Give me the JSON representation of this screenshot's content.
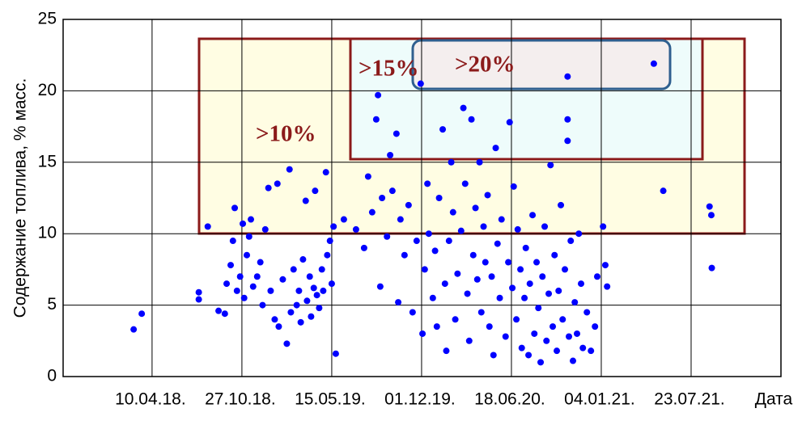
{
  "chart_data": {
    "type": "scatter",
    "ylabel": "Содержание топлива, % масс.",
    "xlabel": "Дата",
    "color": "#0000ff",
    "grid": true,
    "ylim": [
      0,
      25
    ],
    "yticks": [
      0,
      5,
      10,
      15,
      20,
      25
    ],
    "xlim": [
      "2017-09-24",
      "2022-02-08"
    ],
    "xticks": [
      {
        "value": "2018-04-10",
        "label": "10.04.18."
      },
      {
        "value": "2018-10-27",
        "label": "27.10.18."
      },
      {
        "value": "2019-05-15",
        "label": "15.05.19."
      },
      {
        "value": "2019-12-01",
        "label": "01.12.19."
      },
      {
        "value": "2020-06-18",
        "label": "18.06.20."
      },
      {
        "value": "2021-01-04",
        "label": "04.01.21."
      },
      {
        "value": "2021-07-23",
        "label": "23.07.21."
      }
    ],
    "annotations": [
      ">10%",
      ">15%",
      ">20%"
    ],
    "x": [
      "2018-02-28",
      "2018-03-18",
      "2018-07-23",
      "2018-07-23",
      "2018-08-12",
      "2018-09-05",
      "2018-09-19",
      "2018-09-23",
      "2018-10-02",
      "2018-10-07",
      "2018-10-11",
      "2018-10-16",
      "2018-10-23",
      "2018-10-29",
      "2018-11-01",
      "2018-11-07",
      "2018-11-12",
      "2018-11-16",
      "2018-11-21",
      "2018-11-30",
      "2018-12-07",
      "2018-12-12",
      "2018-12-18",
      "2018-12-25",
      "2018-12-30",
      "2019-01-08",
      "2019-01-17",
      "2019-01-14",
      "2019-01-26",
      "2019-02-04",
      "2019-02-10",
      "2019-02-13",
      "2019-02-19",
      "2019-02-26",
      "2019-03-03",
      "2019-03-07",
      "2019-03-12",
      "2019-03-18",
      "2019-03-21",
      "2019-03-27",
      "2019-03-30",
      "2019-04-05",
      "2019-04-08",
      "2019-04-12",
      "2019-04-17",
      "2019-04-23",
      "2019-04-26",
      "2019-05-02",
      "2019-05-05",
      "2019-05-11",
      "2019-05-15",
      "2019-05-19",
      "2019-05-24",
      "2019-06-11",
      "2019-07-08",
      "2019-07-26",
      "2019-08-04",
      "2019-08-13",
      "2019-08-22",
      "2019-08-26",
      "2019-08-31",
      "2019-09-04",
      "2019-09-15",
      "2019-09-22",
      "2019-09-27",
      "2019-10-06",
      "2019-10-10",
      "2019-10-15",
      "2019-10-24",
      "2019-11-02",
      "2019-11-11",
      "2019-11-20",
      "2019-11-29",
      "2019-12-03",
      "2019-12-08",
      "2019-12-14",
      "2019-12-17",
      "2019-12-26",
      "2019-12-31",
      "2020-01-04",
      "2020-01-09",
      "2020-01-17",
      "2020-01-22",
      "2020-01-25",
      "2020-01-31",
      "2020-02-05",
      "2020-02-09",
      "2020-02-14",
      "2020-02-19",
      "2020-02-27",
      "2020-03-03",
      "2020-03-07",
      "2020-03-12",
      "2020-03-16",
      "2020-03-21",
      "2020-03-25",
      "2020-03-30",
      "2020-04-03",
      "2020-04-08",
      "2020-04-12",
      "2020-04-17",
      "2020-04-21",
      "2020-04-26",
      "2020-04-30",
      "2020-05-05",
      "2020-05-09",
      "2020-05-14",
      "2020-05-18",
      "2020-05-23",
      "2020-05-27",
      "2020-06-05",
      "2020-06-11",
      "2020-06-14",
      "2020-06-20",
      "2020-06-23",
      "2020-06-29",
      "2020-07-02",
      "2020-07-08",
      "2020-07-11",
      "2020-07-17",
      "2020-07-20",
      "2020-07-26",
      "2020-07-29",
      "2020-08-04",
      "2020-08-08",
      "2020-08-13",
      "2020-08-17",
      "2020-08-22",
      "2020-08-26",
      "2020-08-31",
      "2020-09-04",
      "2020-09-09",
      "2020-09-13",
      "2020-09-18",
      "2020-09-22",
      "2020-09-27",
      "2020-10-01",
      "2020-10-06",
      "2020-10-10",
      "2020-10-15",
      "2020-10-21",
      "2020-10-21",
      "2020-10-21",
      "2020-10-24",
      "2020-10-28",
      "2020-11-02",
      "2020-11-06",
      "2020-11-11",
      "2020-11-15",
      "2020-11-20",
      "2020-11-24",
      "2020-12-03",
      "2020-12-12",
      "2020-12-21",
      "2020-12-26",
      "2021-01-08",
      "2021-01-13",
      "2021-01-17",
      "2021-05-01",
      "2021-05-22",
      "2021-09-02",
      "2021-09-06",
      "2021-09-07"
    ],
    "values": [
      3.3,
      4.4,
      5.9,
      5.4,
      10.5,
      4.6,
      4.4,
      6.5,
      7.8,
      9.5,
      11.8,
      6.0,
      7.0,
      10.7,
      5.5,
      8.5,
      9.8,
      11.0,
      6.3,
      7.0,
      8.0,
      5.0,
      10.3,
      13.2,
      6.0,
      4.0,
      3.5,
      13.5,
      6.8,
      2.3,
      14.5,
      4.5,
      7.5,
      5.0,
      6.0,
      3.8,
      8.2,
      12.3,
      5.3,
      7.0,
      4.2,
      6.2,
      13.0,
      5.7,
      4.8,
      7.5,
      6.0,
      14.3,
      8.5,
      9.5,
      6.5,
      10.5,
      1.6,
      11.0,
      10.3,
      9.0,
      14.0,
      11.5,
      18.0,
      19.7,
      6.3,
      12.5,
      9.8,
      15.5,
      13.0,
      17.0,
      5.2,
      11.0,
      8.5,
      12.0,
      4.5,
      9.5,
      20.5,
      3.0,
      7.5,
      13.5,
      10.0,
      5.5,
      8.8,
      3.5,
      12.5,
      17.3,
      6.5,
      1.8,
      9.5,
      15.0,
      11.5,
      4.0,
      7.2,
      10.2,
      18.8,
      13.5,
      5.8,
      2.5,
      18.0,
      8.5,
      11.8,
      6.8,
      15.0,
      4.5,
      10.5,
      8.0,
      12.7,
      3.5,
      7.0,
      1.5,
      16.0,
      9.3,
      5.5,
      11.0,
      2.8,
      8.0,
      17.8,
      6.2,
      13.3,
      4.0,
      10.3,
      7.5,
      2.0,
      5.5,
      9.0,
      1.5,
      6.5,
      11.3,
      3.0,
      8.0,
      4.8,
      1.0,
      7.0,
      10.5,
      2.5,
      5.8,
      14.8,
      3.5,
      8.5,
      1.8,
      6.0,
      12.0,
      4.0,
      7.5,
      21.0,
      18.0,
      16.5,
      2.8,
      9.5,
      1.1,
      5.2,
      3.0,
      10.0,
      6.5,
      2.0,
      4.5,
      1.8,
      3.5,
      7.0,
      10.5,
      7.8,
      6.3,
      21.9,
      13.0,
      11.9,
      11.3,
      7.6
    ]
  }
}
